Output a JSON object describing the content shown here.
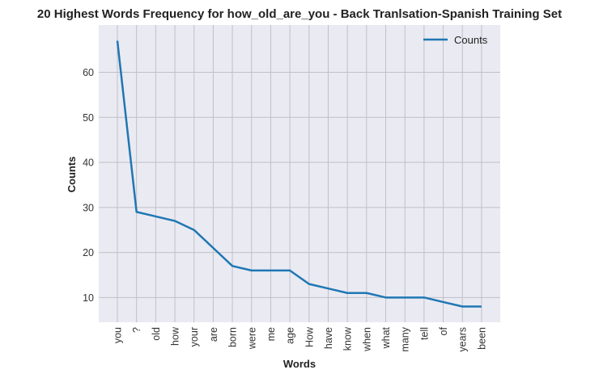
{
  "chart_data": {
    "type": "line",
    "title": "20 Highest Words Frequency for how_old_are_you - Back Tranlsation-Spanish Training Set",
    "xlabel": "Words",
    "ylabel": "Counts",
    "categories": [
      "you",
      "?",
      "old",
      "how",
      "your",
      "are",
      "born",
      "were",
      "me",
      "age",
      "How",
      "have",
      "know",
      "when",
      "what",
      "many",
      "tell",
      "of",
      "years",
      "been"
    ],
    "series": [
      {
        "name": "Counts",
        "values": [
          67,
          29,
          28,
          27,
          25,
          21,
          17,
          16,
          16,
          16,
          13,
          12,
          11,
          11,
          10,
          10,
          10,
          9,
          8,
          8
        ]
      }
    ],
    "yticks": [
      10,
      20,
      30,
      40,
      50,
      60
    ],
    "ylim": [
      4.5,
      70.5
    ],
    "grid": true,
    "legend_position": "top-right",
    "colors": {
      "line": "#1f77b4",
      "background": "#eaeaf2",
      "grid": "#c0c0c8"
    }
  }
}
